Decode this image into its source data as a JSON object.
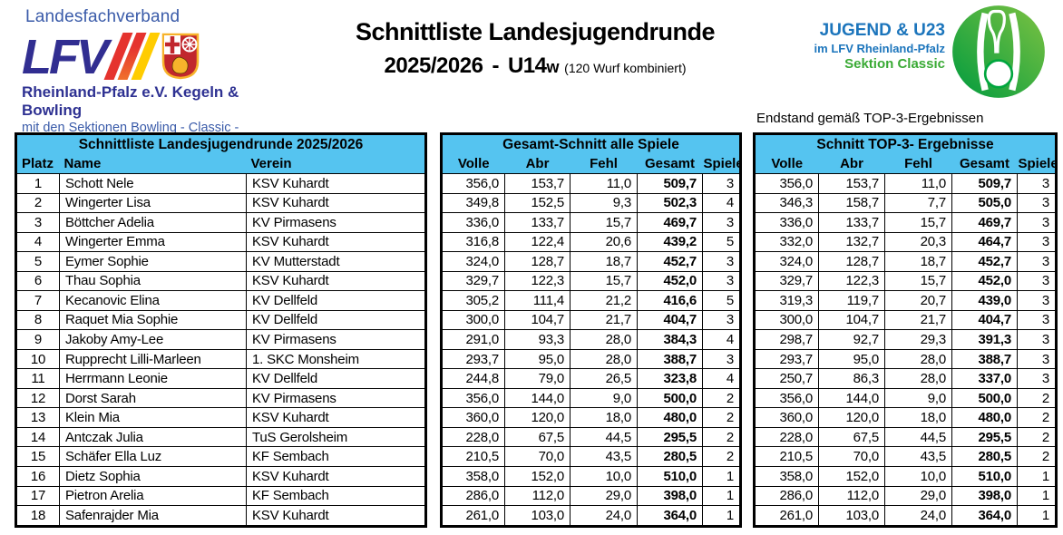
{
  "header": {
    "logo_left": {
      "top_label": "Landesfachverband",
      "acronym": "LFV",
      "sub1": "Rheinland-Pfalz e.V. Kegeln & Bowling",
      "sub2": "mit den Sektionen Bowling - Classic - Schere"
    },
    "title_line1": "Schnittliste Landesjugendrunde",
    "title_season": "2025/2026",
    "title_sep": "-",
    "title_class": "U14",
    "title_class_suffix": "w",
    "title_note": "(120 Wurf kombiniert)",
    "logo_right": {
      "line1": "JUGEND & U23",
      "line2": "im LFV Rheinland-Pfalz",
      "line3": "Sektion Classic"
    }
  },
  "endstand_note": "Endstand gemäß TOP-3-Ergebnissen",
  "tables": {
    "ranking": {
      "title": "Schnittliste Landesjugendrunde 2025/2026",
      "columns": [
        "Platz",
        "Name",
        "Verein"
      ]
    },
    "overall": {
      "title": "Gesamt-Schnitt alle Spiele",
      "columns": [
        "Volle",
        "Abr",
        "Fehl",
        "Gesamt",
        "Spiele"
      ]
    },
    "top3": {
      "title": "Schnitt TOP-3- Ergebnisse",
      "columns": [
        "Volle",
        "Abr",
        "Fehl",
        "Gesamt",
        "Spiele"
      ]
    }
  },
  "rows": [
    {
      "platz": "1",
      "name": "Schott Nele",
      "verein": "KSV Kuhardt",
      "gesamt": {
        "volle": "356,0",
        "abr": "153,7",
        "fehl": "11,0",
        "gesamt": "509,7",
        "spiele": "3"
      },
      "top3": {
        "volle": "356,0",
        "abr": "153,7",
        "fehl": "11,0",
        "gesamt": "509,7",
        "spiele": "3"
      }
    },
    {
      "platz": "2",
      "name": "Wingerter Lisa",
      "verein": "KSV Kuhardt",
      "gesamt": {
        "volle": "349,8",
        "abr": "152,5",
        "fehl": "9,3",
        "gesamt": "502,3",
        "spiele": "4"
      },
      "top3": {
        "volle": "346,3",
        "abr": "158,7",
        "fehl": "7,7",
        "gesamt": "505,0",
        "spiele": "3"
      }
    },
    {
      "platz": "3",
      "name": "Böttcher Adelia",
      "verein": "KV Pirmasens",
      "gesamt": {
        "volle": "336,0",
        "abr": "133,7",
        "fehl": "15,7",
        "gesamt": "469,7",
        "spiele": "3"
      },
      "top3": {
        "volle": "336,0",
        "abr": "133,7",
        "fehl": "15,7",
        "gesamt": "469,7",
        "spiele": "3"
      }
    },
    {
      "platz": "4",
      "name": "Wingerter Emma",
      "verein": "KSV Kuhardt",
      "gesamt": {
        "volle": "316,8",
        "abr": "122,4",
        "fehl": "20,6",
        "gesamt": "439,2",
        "spiele": "5"
      },
      "top3": {
        "volle": "332,0",
        "abr": "132,7",
        "fehl": "20,3",
        "gesamt": "464,7",
        "spiele": "3"
      }
    },
    {
      "platz": "5",
      "name": "Eymer Sophie",
      "verein": "KV Mutterstadt",
      "gesamt": {
        "volle": "324,0",
        "abr": "128,7",
        "fehl": "18,7",
        "gesamt": "452,7",
        "spiele": "3"
      },
      "top3": {
        "volle": "324,0",
        "abr": "128,7",
        "fehl": "18,7",
        "gesamt": "452,7",
        "spiele": "3"
      }
    },
    {
      "platz": "6",
      "name": "Thau Sophia",
      "verein": "KSV Kuhardt",
      "gesamt": {
        "volle": "329,7",
        "abr": "122,3",
        "fehl": "15,7",
        "gesamt": "452,0",
        "spiele": "3"
      },
      "top3": {
        "volle": "329,7",
        "abr": "122,3",
        "fehl": "15,7",
        "gesamt": "452,0",
        "spiele": "3"
      }
    },
    {
      "platz": "7",
      "name": "Kecanovic Elina",
      "verein": "KV Dellfeld",
      "gesamt": {
        "volle": "305,2",
        "abr": "111,4",
        "fehl": "21,2",
        "gesamt": "416,6",
        "spiele": "5"
      },
      "top3": {
        "volle": "319,3",
        "abr": "119,7",
        "fehl": "20,7",
        "gesamt": "439,0",
        "spiele": "3"
      }
    },
    {
      "platz": "8",
      "name": "Raquet Mia Sophie",
      "verein": "KV Dellfeld",
      "gesamt": {
        "volle": "300,0",
        "abr": "104,7",
        "fehl": "21,7",
        "gesamt": "404,7",
        "spiele": "3"
      },
      "top3": {
        "volle": "300,0",
        "abr": "104,7",
        "fehl": "21,7",
        "gesamt": "404,7",
        "spiele": "3"
      }
    },
    {
      "platz": "9",
      "name": "Jakoby Amy-Lee",
      "verein": "KV Pirmasens",
      "gesamt": {
        "volle": "291,0",
        "abr": "93,3",
        "fehl": "28,0",
        "gesamt": "384,3",
        "spiele": "4"
      },
      "top3": {
        "volle": "298,7",
        "abr": "92,7",
        "fehl": "29,3",
        "gesamt": "391,3",
        "spiele": "3"
      }
    },
    {
      "platz": "10",
      "name": "Rupprecht Lilli-Marleen",
      "verein": "1. SKC Monsheim",
      "gesamt": {
        "volle": "293,7",
        "abr": "95,0",
        "fehl": "28,0",
        "gesamt": "388,7",
        "spiele": "3"
      },
      "top3": {
        "volle": "293,7",
        "abr": "95,0",
        "fehl": "28,0",
        "gesamt": "388,7",
        "spiele": "3"
      }
    },
    {
      "platz": "11",
      "name": "Herrmann Leonie",
      "verein": "KV Dellfeld",
      "gesamt": {
        "volle": "244,8",
        "abr": "79,0",
        "fehl": "26,5",
        "gesamt": "323,8",
        "spiele": "4"
      },
      "top3": {
        "volle": "250,7",
        "abr": "86,3",
        "fehl": "28,0",
        "gesamt": "337,0",
        "spiele": "3"
      }
    },
    {
      "platz": "12",
      "name": "Dorst Sarah",
      "verein": "KV Pirmasens",
      "gesamt": {
        "volle": "356,0",
        "abr": "144,0",
        "fehl": "9,0",
        "gesamt": "500,0",
        "spiele": "2"
      },
      "top3": {
        "volle": "356,0",
        "abr": "144,0",
        "fehl": "9,0",
        "gesamt": "500,0",
        "spiele": "2"
      }
    },
    {
      "platz": "13",
      "name": "Klein Mia",
      "verein": "KSV Kuhardt",
      "gesamt": {
        "volle": "360,0",
        "abr": "120,0",
        "fehl": "18,0",
        "gesamt": "480,0",
        "spiele": "2"
      },
      "top3": {
        "volle": "360,0",
        "abr": "120,0",
        "fehl": "18,0",
        "gesamt": "480,0",
        "spiele": "2"
      }
    },
    {
      "platz": "14",
      "name": "Antczak Julia",
      "verein": "TuS Gerolsheim",
      "gesamt": {
        "volle": "228,0",
        "abr": "67,5",
        "fehl": "44,5",
        "gesamt": "295,5",
        "spiele": "2"
      },
      "top3": {
        "volle": "228,0",
        "abr": "67,5",
        "fehl": "44,5",
        "gesamt": "295,5",
        "spiele": "2"
      }
    },
    {
      "platz": "15",
      "name": "Schäfer Ella Luz",
      "verein": "KF Sembach",
      "gesamt": {
        "volle": "210,5",
        "abr": "70,0",
        "fehl": "43,5",
        "gesamt": "280,5",
        "spiele": "2"
      },
      "top3": {
        "volle": "210,5",
        "abr": "70,0",
        "fehl": "43,5",
        "gesamt": "280,5",
        "spiele": "2"
      }
    },
    {
      "platz": "16",
      "name": "Dietz Sophia",
      "verein": "KSV Kuhardt",
      "gesamt": {
        "volle": "358,0",
        "abr": "152,0",
        "fehl": "10,0",
        "gesamt": "510,0",
        "spiele": "1"
      },
      "top3": {
        "volle": "358,0",
        "abr": "152,0",
        "fehl": "10,0",
        "gesamt": "510,0",
        "spiele": "1"
      }
    },
    {
      "platz": "17",
      "name": "Pietron Arelia",
      "verein": "KF Sembach",
      "gesamt": {
        "volle": "286,0",
        "abr": "112,0",
        "fehl": "29,0",
        "gesamt": "398,0",
        "spiele": "1"
      },
      "top3": {
        "volle": "286,0",
        "abr": "112,0",
        "fehl": "29,0",
        "gesamt": "398,0",
        "spiele": "1"
      }
    },
    {
      "platz": "18",
      "name": "Safenrajder Mia",
      "verein": "KSV Kuhardt",
      "gesamt": {
        "volle": "261,0",
        "abr": "103,0",
        "fehl": "24,0",
        "gesamt": "364,0",
        "spiele": "1"
      },
      "top3": {
        "volle": "261,0",
        "abr": "103,0",
        "fehl": "24,0",
        "gesamt": "364,0",
        "spiele": "1"
      }
    }
  ],
  "colors": {
    "header_blue": "#55c4f0",
    "lfv_blue": "#312e91",
    "lfv_text_blue": "#3a5ba9",
    "jugend_blue": "#1c75bc",
    "classic_green": "#3aaa35",
    "stripe_red": "#e5332e",
    "stripe_orange": "#f0712c",
    "stripe_yellow": "#ffcc00"
  }
}
